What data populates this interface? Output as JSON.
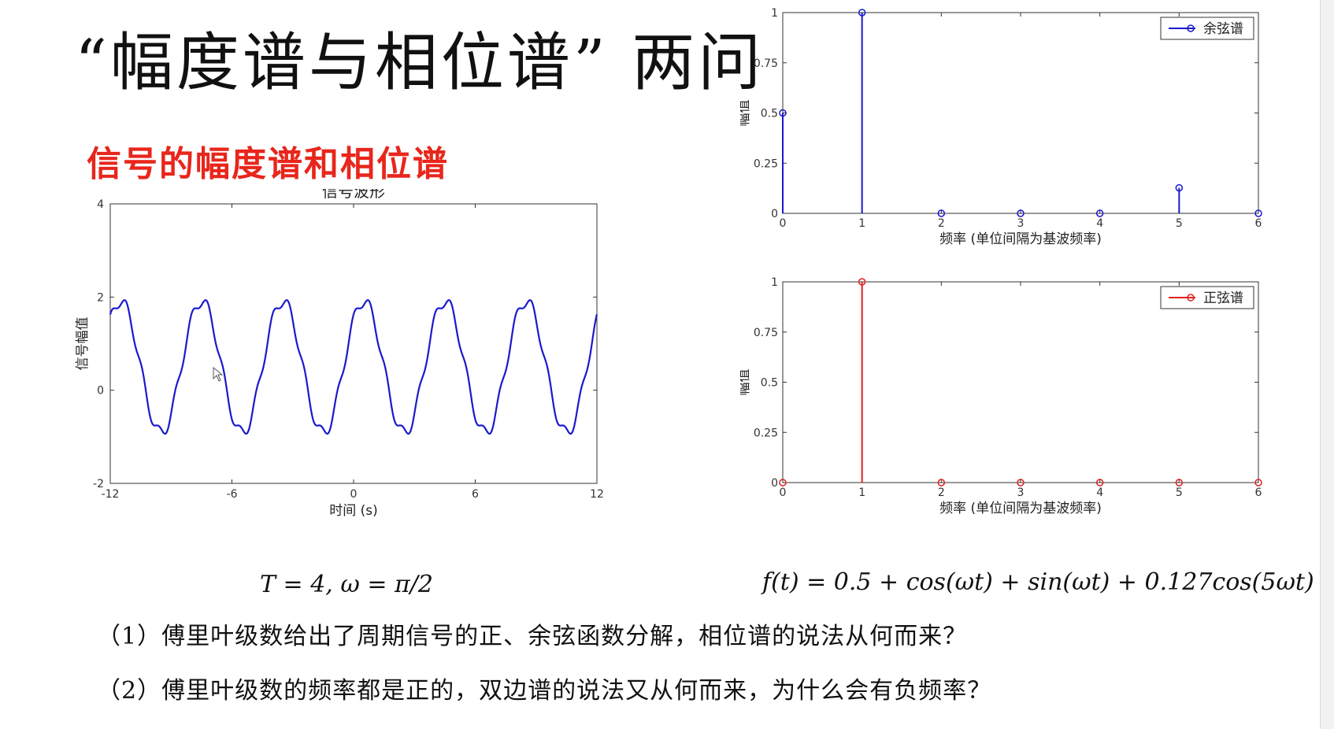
{
  "slide": {
    "title": "“幅度谱与相位谱” 两问",
    "subtitle": "信号的幅度谱和相位谱",
    "equation_left": "T = 4,     ω = π/2",
    "equation_right": "f(t) = 0.5 + cos(ωt) + sin(ωt) + 0.127cos(5ωt)",
    "question1": "（1）傅里叶级数给出了周期信号的正、余弦函数分解，相位谱的说法从何而来？",
    "question2": "（2）傅里叶级数的频率都是正的，双边谱的说法又从何而来，为什么会有负频率？"
  },
  "chart_data": [
    {
      "type": "line",
      "title": "信号波形",
      "xlabel": "时间 (s)",
      "ylabel": "信号幅值",
      "xlim": [
        -12,
        12
      ],
      "ylim": [
        -2,
        4
      ],
      "xticks": [
        "-12",
        "-6",
        "0",
        "6",
        "12"
      ],
      "yticks": [
        "-2",
        "0",
        "2",
        "4"
      ],
      "color": "#1a1acc",
      "function": "0.5 + cos(ωt) + sin(ωt) + 0.127cos(5ωt), ω = π/2",
      "period": 4
    },
    {
      "type": "stem",
      "xlabel": "频率 (单位间隔为基波频率)",
      "ylabel": "幅值",
      "xlim": [
        0,
        6
      ],
      "ylim": [
        0,
        1
      ],
      "xticks": [
        "0",
        "1",
        "2",
        "3",
        "4",
        "5",
        "6"
      ],
      "yticks": [
        "0",
        "0.25",
        "0.5",
        "0.75",
        "1"
      ],
      "legend": "余弦谱",
      "legend_position": "top-right",
      "color": "#1a1acc",
      "x": [
        0,
        1,
        2,
        3,
        4,
        5,
        6
      ],
      "values": [
        0.5,
        1,
        0,
        0,
        0,
        0.127,
        0
      ]
    },
    {
      "type": "stem",
      "xlabel": "频率 (单位间隔为基波频率)",
      "ylabel": "幅值",
      "xlim": [
        0,
        6
      ],
      "ylim": [
        0,
        1
      ],
      "xticks": [
        "0",
        "1",
        "2",
        "3",
        "4",
        "5",
        "6"
      ],
      "yticks": [
        "0",
        "0.25",
        "0.5",
        "0.75",
        "1"
      ],
      "legend": "正弦谱",
      "legend_position": "top-right",
      "color": "#dd2222",
      "x": [
        0,
        1,
        2,
        3,
        4,
        5,
        6
      ],
      "values": [
        0,
        1,
        0,
        0,
        0,
        0,
        0
      ]
    }
  ]
}
